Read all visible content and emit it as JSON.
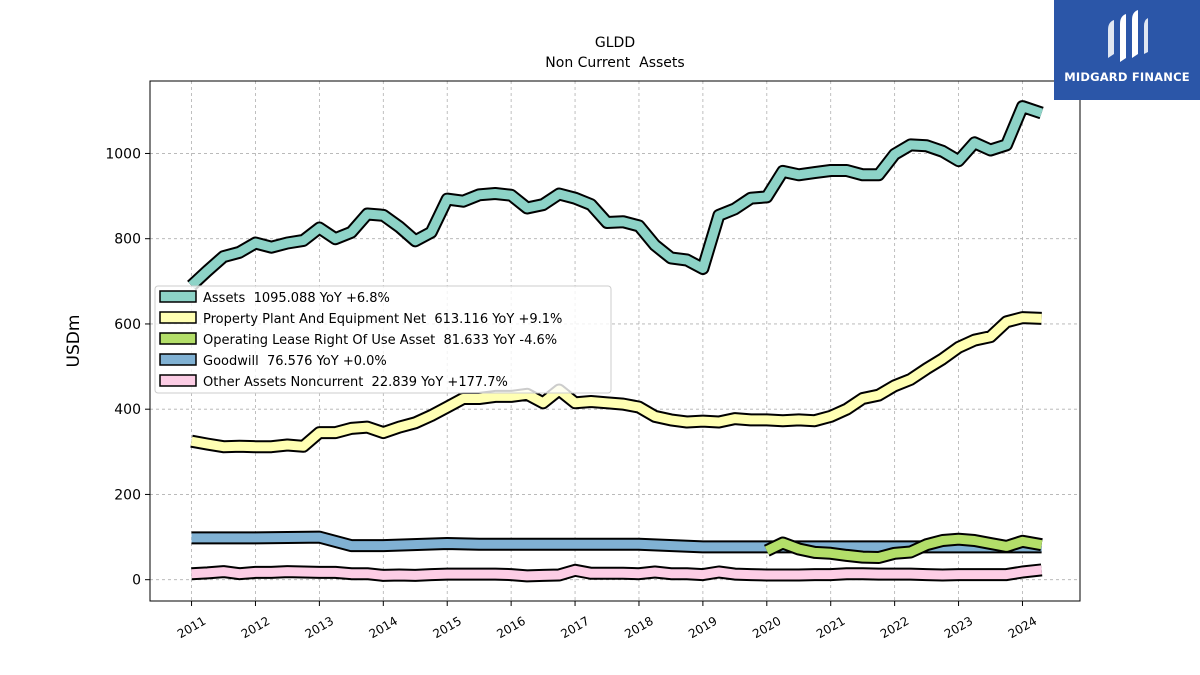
{
  "title": "GLDD",
  "subtitle": "Non Current  Assets",
  "brand": {
    "name": "MIDGARD FINANCE",
    "color": "#2b56a8"
  },
  "chart_data": {
    "type": "line",
    "ylabel": "USDm",
    "xlabel": "",
    "ylim": [
      -50,
      1170
    ],
    "xlim": [
      2010.35,
      2024.9
    ],
    "yticks": [
      0,
      200,
      400,
      600,
      800,
      1000
    ],
    "xticks": [
      "2011",
      "2012",
      "2013",
      "2014",
      "2015",
      "2016",
      "2017",
      "2018",
      "2019",
      "2020",
      "2021",
      "2022",
      "2023",
      "2024"
    ],
    "grid": true,
    "legend_position": "center-left",
    "series": [
      {
        "name": "Assets",
        "legend": "Assets  1095.088 YoY +6.8%",
        "color": "#8dd3c7",
        "points": [
          [
            2011.0,
            690
          ],
          [
            2011.25,
            725
          ],
          [
            2011.5,
            758
          ],
          [
            2011.75,
            768
          ],
          [
            2012.0,
            790
          ],
          [
            2012.25,
            780
          ],
          [
            2012.5,
            790
          ],
          [
            2012.75,
            796
          ],
          [
            2013.0,
            825
          ],
          [
            2013.25,
            800
          ],
          [
            2013.5,
            815
          ],
          [
            2013.75,
            858
          ],
          [
            2014.0,
            855
          ],
          [
            2014.25,
            828
          ],
          [
            2014.5,
            795
          ],
          [
            2014.75,
            815
          ],
          [
            2015.0,
            893
          ],
          [
            2015.25,
            888
          ],
          [
            2015.5,
            903
          ],
          [
            2015.75,
            906
          ],
          [
            2016.0,
            902
          ],
          [
            2016.25,
            872
          ],
          [
            2016.5,
            880
          ],
          [
            2016.75,
            905
          ],
          [
            2017.0,
            895
          ],
          [
            2017.25,
            880
          ],
          [
            2017.5,
            838
          ],
          [
            2017.75,
            840
          ],
          [
            2018.0,
            830
          ],
          [
            2018.25,
            785
          ],
          [
            2018.5,
            755
          ],
          [
            2018.75,
            750
          ],
          [
            2019.0,
            730
          ],
          [
            2019.25,
            855
          ],
          [
            2019.5,
            870
          ],
          [
            2019.75,
            895
          ],
          [
            2020.0,
            898
          ],
          [
            2020.25,
            958
          ],
          [
            2020.5,
            950
          ],
          [
            2020.75,
            955
          ],
          [
            2021.0,
            960
          ],
          [
            2021.25,
            960
          ],
          [
            2021.5,
            950
          ],
          [
            2021.75,
            950
          ],
          [
            2022.0,
            998
          ],
          [
            2022.25,
            1020
          ],
          [
            2022.5,
            1018
          ],
          [
            2022.75,
            1005
          ],
          [
            2023.0,
            983
          ],
          [
            2023.25,
            1025
          ],
          [
            2023.5,
            1008
          ],
          [
            2023.75,
            1020
          ],
          [
            2024.0,
            1110
          ],
          [
            2024.3,
            1095
          ]
        ]
      },
      {
        "name": "Property Plant And Equipment Net",
        "legend": "Property Plant And Equipment Net  613.116 YoY +9.1%",
        "color": "#ffffb3",
        "points": [
          [
            2011.0,
            325
          ],
          [
            2011.25,
            318
          ],
          [
            2011.5,
            312
          ],
          [
            2011.75,
            313
          ],
          [
            2012.0,
            312
          ],
          [
            2012.25,
            312
          ],
          [
            2012.5,
            316
          ],
          [
            2012.75,
            313
          ],
          [
            2013.0,
            345
          ],
          [
            2013.25,
            345
          ],
          [
            2013.5,
            355
          ],
          [
            2013.75,
            358
          ],
          [
            2014.0,
            345
          ],
          [
            2014.25,
            358
          ],
          [
            2014.5,
            368
          ],
          [
            2014.75,
            385
          ],
          [
            2015.0,
            405
          ],
          [
            2015.25,
            425
          ],
          [
            2015.5,
            425
          ],
          [
            2015.75,
            430
          ],
          [
            2016.0,
            430
          ],
          [
            2016.25,
            435
          ],
          [
            2016.5,
            415
          ],
          [
            2016.75,
            445
          ],
          [
            2017.0,
            415
          ],
          [
            2017.25,
            418
          ],
          [
            2017.5,
            415
          ],
          [
            2017.75,
            412
          ],
          [
            2018.0,
            405
          ],
          [
            2018.25,
            383
          ],
          [
            2018.5,
            375
          ],
          [
            2018.75,
            370
          ],
          [
            2019.0,
            372
          ],
          [
            2019.25,
            370
          ],
          [
            2019.5,
            378
          ],
          [
            2019.75,
            375
          ],
          [
            2020.0,
            375
          ],
          [
            2020.25,
            373
          ],
          [
            2020.5,
            375
          ],
          [
            2020.75,
            373
          ],
          [
            2021.0,
            383
          ],
          [
            2021.25,
            400
          ],
          [
            2021.5,
            425
          ],
          [
            2021.75,
            433
          ],
          [
            2022.0,
            455
          ],
          [
            2022.25,
            470
          ],
          [
            2022.5,
            495
          ],
          [
            2022.75,
            518
          ],
          [
            2023.0,
            545
          ],
          [
            2023.25,
            562
          ],
          [
            2023.5,
            570
          ],
          [
            2023.75,
            605
          ],
          [
            2024.0,
            615
          ],
          [
            2024.3,
            613
          ]
        ]
      },
      {
        "name": "Operating Lease Right Of Use Asset",
        "legend": "Operating Lease Right Of Use Asset  81.633 YoY -4.6%",
        "color": "#b3de69",
        "points": [
          [
            2020.0,
            68
          ],
          [
            2020.25,
            86
          ],
          [
            2020.5,
            72
          ],
          [
            2020.75,
            64
          ],
          [
            2021.0,
            62
          ],
          [
            2021.25,
            57
          ],
          [
            2021.5,
            53
          ],
          [
            2021.75,
            52
          ],
          [
            2022.0,
            62
          ],
          [
            2022.25,
            65
          ],
          [
            2022.5,
            82
          ],
          [
            2022.75,
            92
          ],
          [
            2023.0,
            95
          ],
          [
            2023.25,
            92
          ],
          [
            2023.5,
            85
          ],
          [
            2023.75,
            78
          ],
          [
            2024.0,
            90
          ],
          [
            2024.3,
            82
          ]
        ]
      },
      {
        "name": "Goodwill",
        "legend": "Goodwill  76.576 YoY +0.0%",
        "color": "#80b1d3",
        "points": [
          [
            2011.0,
            98
          ],
          [
            2012.0,
            98
          ],
          [
            2013.0,
            100
          ],
          [
            2013.5,
            80
          ],
          [
            2014.0,
            80
          ],
          [
            2015.0,
            85
          ],
          [
            2015.5,
            83
          ],
          [
            2016.0,
            83
          ],
          [
            2017.0,
            83
          ],
          [
            2018.0,
            83
          ],
          [
            2019.0,
            77
          ],
          [
            2020.0,
            77
          ],
          [
            2021.0,
            77
          ],
          [
            2022.0,
            77
          ],
          [
            2023.0,
            77
          ],
          [
            2024.0,
            77
          ],
          [
            2024.3,
            77
          ]
        ]
      },
      {
        "name": "Other Assets Noncurrent",
        "legend": "Other Assets Noncurrent  22.839 YoY +177.7%",
        "color": "#fccde5",
        "points": [
          [
            2011.0,
            14
          ],
          [
            2011.25,
            16
          ],
          [
            2011.5,
            19
          ],
          [
            2011.75,
            14
          ],
          [
            2012.0,
            17
          ],
          [
            2012.25,
            17
          ],
          [
            2012.5,
            19
          ],
          [
            2012.75,
            18
          ],
          [
            2013.0,
            17
          ],
          [
            2013.25,
            17
          ],
          [
            2013.5,
            14
          ],
          [
            2013.75,
            14
          ],
          [
            2014.0,
            10
          ],
          [
            2014.25,
            11
          ],
          [
            2014.5,
            10
          ],
          [
            2014.75,
            12
          ],
          [
            2015.0,
            13
          ],
          [
            2015.25,
            13
          ],
          [
            2015.5,
            13
          ],
          [
            2015.75,
            13
          ],
          [
            2016.0,
            12
          ],
          [
            2016.25,
            9
          ],
          [
            2016.5,
            10
          ],
          [
            2016.75,
            11
          ],
          [
            2017.0,
            22
          ],
          [
            2017.25,
            15
          ],
          [
            2017.5,
            15
          ],
          [
            2017.75,
            15
          ],
          [
            2018.0,
            14
          ],
          [
            2018.25,
            18
          ],
          [
            2018.5,
            14
          ],
          [
            2018.75,
            14
          ],
          [
            2019.0,
            12
          ],
          [
            2019.25,
            18
          ],
          [
            2019.5,
            13
          ],
          [
            2019.75,
            12
          ],
          [
            2020.0,
            11
          ],
          [
            2020.25,
            11
          ],
          [
            2020.5,
            11
          ],
          [
            2020.75,
            12
          ],
          [
            2021.0,
            12
          ],
          [
            2021.25,
            14
          ],
          [
            2021.5,
            14
          ],
          [
            2021.75,
            13
          ],
          [
            2022.0,
            13
          ],
          [
            2022.25,
            13
          ],
          [
            2022.5,
            12
          ],
          [
            2022.75,
            11
          ],
          [
            2023.0,
            12
          ],
          [
            2023.25,
            12
          ],
          [
            2023.5,
            12
          ],
          [
            2023.75,
            12
          ],
          [
            2024.0,
            18
          ],
          [
            2024.3,
            23
          ]
        ]
      }
    ]
  }
}
